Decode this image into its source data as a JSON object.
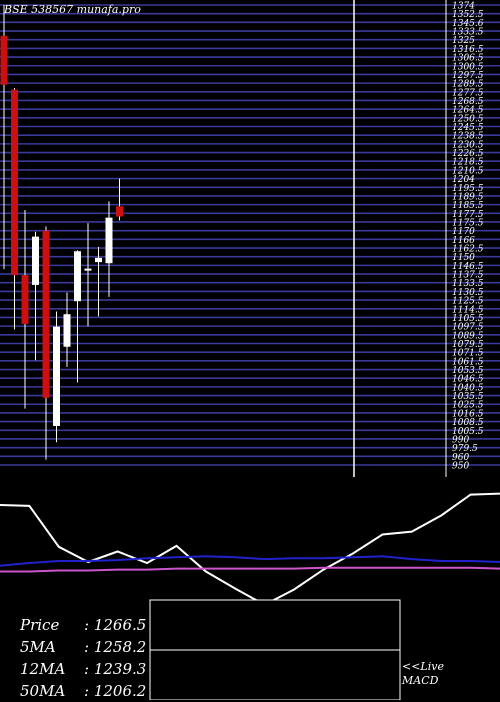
{
  "header": {
    "title": "BSE 538567 munafa.pro"
  },
  "chart_data": {
    "type": "candlestick",
    "title": "BSE 538567 munafa.pro",
    "y_tick_labels": [
      "1374",
      "1352.5",
      "1345.6",
      "1333.5",
      "1325",
      "1316.5",
      "1306.5",
      "1300.5",
      "1297.5",
      "1289.5",
      "1277.5",
      "1268.5",
      "1264.5",
      "1250.5",
      "1245.5",
      "1238.5",
      "1230.5",
      "1226.5",
      "1218.5",
      "1210.5",
      "1204",
      "1195.5",
      "1189.5",
      "1185.5",
      "1177.5",
      "1175.5",
      "1170",
      "1166",
      "1162.5",
      "1150",
      "1146.5",
      "1137.5",
      "1133.5",
      "1130.5",
      "1125.5",
      "1114.5",
      "1105.5",
      "1097.5",
      "1089.5",
      "1079.5",
      "1071.5",
      "1061.5",
      "1053.5",
      "1046.5",
      "1040.5",
      "1035.5",
      "1025.5",
      "1016.5",
      "1008.5",
      "1005.5",
      "990",
      "979.5",
      "960",
      "950"
    ],
    "candles": [
      {
        "open": 1345.6,
        "high": 1374,
        "low": 1130.5,
        "close": 1300.5,
        "color": "red"
      },
      {
        "open": 1296.0,
        "high": 1297.5,
        "low": 1075.0,
        "close": 1125.0,
        "color": "red"
      },
      {
        "open": 1080.0,
        "high": 1185.0,
        "low": 1002.0,
        "close": 1125.0,
        "color": "red"
      },
      {
        "open": 1116.0,
        "high": 1165.0,
        "low": 1046.5,
        "close": 1160.5,
        "color": "white"
      },
      {
        "open": 1166.0,
        "high": 1170.0,
        "low": 955.0,
        "close": 1012.0,
        "color": "red"
      },
      {
        "open": 1077.5,
        "high": 1091.5,
        "low": 971.0,
        "close": 986.0,
        "color": "white"
      },
      {
        "open": 1059.0,
        "high": 1109.0,
        "low": 1040.5,
        "close": 1089.0,
        "color": "white"
      },
      {
        "open": 1101.0,
        "high": 1148.0,
        "low": 1026.0,
        "close": 1147.0,
        "color": "white"
      },
      {
        "open": 1130.5,
        "high": 1173.0,
        "low": 1078.0,
        "close": 1131.0,
        "color": "white"
      },
      {
        "open": 1137.0,
        "high": 1151.0,
        "low": 1087.0,
        "close": 1141.0,
        "color": "white"
      },
      {
        "open": 1136.0,
        "high": 1193.0,
        "low": 1105.0,
        "close": 1178.0,
        "color": "white"
      },
      {
        "open": 1179.0,
        "high": 1214.0,
        "low": 1175.5,
        "close": 1188.5,
        "color": "red"
      }
    ],
    "macd_lines": [
      {
        "color": "#ffffff",
        "values": [
          100,
          99,
          56,
          40,
          51,
          39,
          57,
          30,
          12,
          -5,
          11,
          32,
          49,
          69,
          72,
          89,
          111,
          112
        ]
      },
      {
        "color": "#2222cc",
        "values": [
          36,
          39,
          41,
          41,
          42,
          44,
          45,
          46,
          45,
          43,
          44,
          44,
          45,
          46,
          43,
          41,
          41,
          40
        ]
      },
      {
        "color": "#cc55cc",
        "values": [
          30,
          30,
          31,
          31,
          32,
          32,
          33,
          33,
          33,
          33,
          33,
          34,
          34,
          34,
          34,
          34,
          34,
          33
        ]
      }
    ],
    "stats": [
      {
        "label": "Price",
        "value": "1266.5"
      },
      {
        "label": "5MA",
        "value": "1258.2"
      },
      {
        "label": "12MA",
        "value": "1239.3"
      },
      {
        "label": "50MA",
        "value": "1206.2"
      }
    ],
    "live_label": [
      "<<Live",
      "MACD"
    ]
  }
}
